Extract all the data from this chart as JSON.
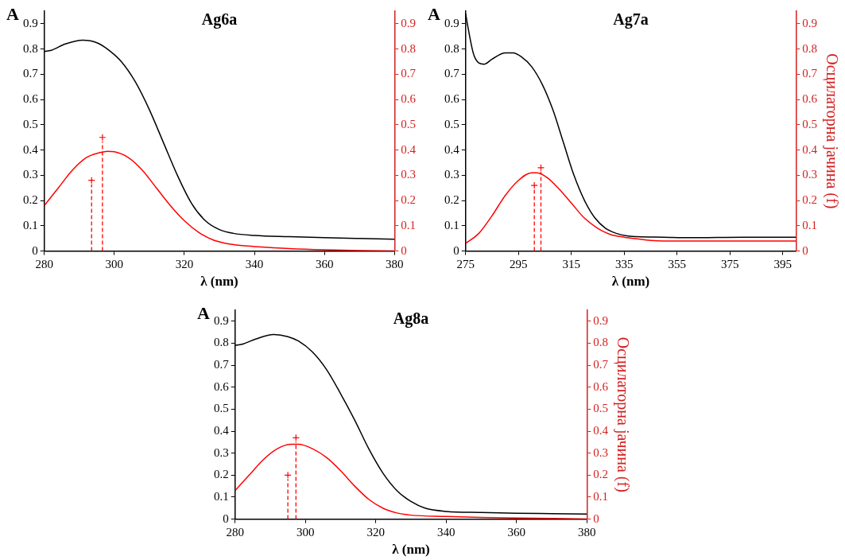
{
  "chart_data": [
    {
      "type": "line",
      "title": "Ag6a",
      "ylabel": "A",
      "xlabel": "λ (nm)",
      "xlim": [
        280,
        380
      ],
      "xticks": [
        280,
        300,
        320,
        340,
        360,
        380
      ],
      "ylim": [
        0,
        0.95
      ],
      "yticks": [
        0,
        0.1,
        0.2,
        0.3,
        0.4,
        0.5,
        0.6,
        0.7,
        0.8,
        0.9
      ],
      "y2lim": [
        0,
        0.95
      ],
      "y2ticks": [
        0,
        0.1,
        0.2,
        0.3,
        0.4,
        0.5,
        0.6,
        0.7,
        0.8,
        0.9
      ],
      "grid": false,
      "legend": false,
      "series": [
        {
          "type": "line",
          "color": "#000000",
          "x": [
            280,
            282,
            286,
            291,
            295,
            298,
            302,
            306,
            310,
            314,
            318,
            322,
            326,
            330,
            334,
            340,
            350,
            360,
            370,
            380
          ],
          "values": [
            0.79,
            0.795,
            0.82,
            0.835,
            0.825,
            0.8,
            0.75,
            0.67,
            0.56,
            0.43,
            0.3,
            0.19,
            0.12,
            0.085,
            0.07,
            0.062,
            0.057,
            0.053,
            0.05,
            0.047
          ]
        },
        {
          "type": "line",
          "color": "#ff0000",
          "x": [
            280,
            284,
            288,
            292,
            296,
            298,
            300,
            304,
            308,
            312,
            316,
            320,
            324,
            328,
            332,
            336,
            340,
            350,
            360,
            370,
            380
          ],
          "values": [
            0.18,
            0.25,
            0.32,
            0.37,
            0.39,
            0.395,
            0.393,
            0.37,
            0.32,
            0.25,
            0.18,
            0.12,
            0.075,
            0.045,
            0.03,
            0.022,
            0.018,
            0.01,
            0.005,
            0.002,
            0
          ]
        },
        {
          "type": "lollipop",
          "color": "#ff0000",
          "marker": "cross",
          "line_style": "dashed",
          "x": [
            293.5,
            296.6
          ],
          "values": [
            0.28,
            0.45
          ]
        }
      ]
    },
    {
      "type": "line",
      "title": "Ag7a",
      "ylabel": "A",
      "xlabel": "λ (nm)",
      "y2label": "Осцилаторна јачина (f)",
      "xlim": [
        275,
        400
      ],
      "xticks": [
        275,
        295,
        315,
        335,
        355,
        375,
        395
      ],
      "ylim": [
        0,
        0.95
      ],
      "yticks": [
        0,
        0.1,
        0.2,
        0.3,
        0.4,
        0.5,
        0.6,
        0.7,
        0.8,
        0.9
      ],
      "y2lim": [
        0,
        0.95
      ],
      "y2ticks": [
        0,
        0.1,
        0.2,
        0.3,
        0.4,
        0.5,
        0.6,
        0.7,
        0.8,
        0.9
      ],
      "grid": false,
      "legend": false,
      "series": [
        {
          "type": "line",
          "color": "#000000",
          "x": [
            275,
            276,
            278,
            280,
            282,
            285,
            290,
            293,
            296,
            300,
            304,
            308,
            312,
            316,
            320,
            324,
            328,
            332,
            336,
            340,
            350,
            360,
            380,
            400
          ],
          "values": [
            0.94,
            0.88,
            0.78,
            0.745,
            0.74,
            0.76,
            0.785,
            0.785,
            0.77,
            0.73,
            0.66,
            0.56,
            0.43,
            0.3,
            0.2,
            0.13,
            0.09,
            0.07,
            0.06,
            0.057,
            0.055,
            0.053,
            0.055,
            0.055
          ]
        },
        {
          "type": "line",
          "color": "#ff0000",
          "x": [
            275,
            280,
            285,
            290,
            295,
            300,
            302,
            306,
            310,
            315,
            320,
            325,
            330,
            335,
            340,
            345,
            350,
            360,
            400
          ],
          "values": [
            0.03,
            0.07,
            0.14,
            0.22,
            0.28,
            0.31,
            0.31,
            0.29,
            0.25,
            0.19,
            0.13,
            0.09,
            0.065,
            0.055,
            0.048,
            0.042,
            0.04,
            0.04,
            0.04
          ]
        },
        {
          "type": "lollipop",
          "color": "#ff0000",
          "marker": "cross",
          "line_style": "dashed",
          "x": [
            301,
            303.5
          ],
          "values": [
            0.26,
            0.33
          ]
        }
      ]
    },
    {
      "type": "line",
      "title": "Ag8a",
      "ylabel": "A",
      "xlabel": "λ (nm)",
      "y2label": "Осцилаторна јачина (f)",
      "xlim": [
        280,
        380
      ],
      "xticks": [
        280,
        300,
        320,
        340,
        360,
        380
      ],
      "ylim": [
        0,
        0.95
      ],
      "yticks": [
        0,
        0.1,
        0.2,
        0.3,
        0.4,
        0.5,
        0.6,
        0.7,
        0.8,
        0.9
      ],
      "y2lim": [
        0,
        0.95
      ],
      "y2ticks": [
        0,
        0.1,
        0.2,
        0.3,
        0.4,
        0.5,
        0.6,
        0.7,
        0.8,
        0.9
      ],
      "grid": false,
      "legend": false,
      "series": [
        {
          "type": "line",
          "color": "#000000",
          "x": [
            280,
            282,
            286,
            291,
            295,
            298,
            302,
            306,
            310,
            314,
            318,
            322,
            326,
            330,
            334,
            340,
            350,
            360,
            370,
            380
          ],
          "values": [
            0.79,
            0.795,
            0.82,
            0.84,
            0.83,
            0.81,
            0.76,
            0.68,
            0.57,
            0.45,
            0.32,
            0.21,
            0.13,
            0.08,
            0.05,
            0.035,
            0.03,
            0.027,
            0.025,
            0.023
          ]
        },
        {
          "type": "line",
          "color": "#ff0000",
          "x": [
            280,
            284,
            288,
            292,
            296,
            298,
            302,
            306,
            310,
            314,
            318,
            322,
            326,
            330,
            340,
            350,
            360,
            370,
            380
          ],
          "values": [
            0.13,
            0.2,
            0.27,
            0.32,
            0.34,
            0.34,
            0.32,
            0.28,
            0.22,
            0.15,
            0.09,
            0.05,
            0.028,
            0.018,
            0.012,
            0.008,
            0.005,
            0.003,
            0
          ]
        },
        {
          "type": "lollipop",
          "color": "#ff0000",
          "marker": "cross",
          "line_style": "dashed",
          "x": [
            295,
            297.3
          ],
          "values": [
            0.2,
            0.37
          ]
        }
      ]
    }
  ]
}
